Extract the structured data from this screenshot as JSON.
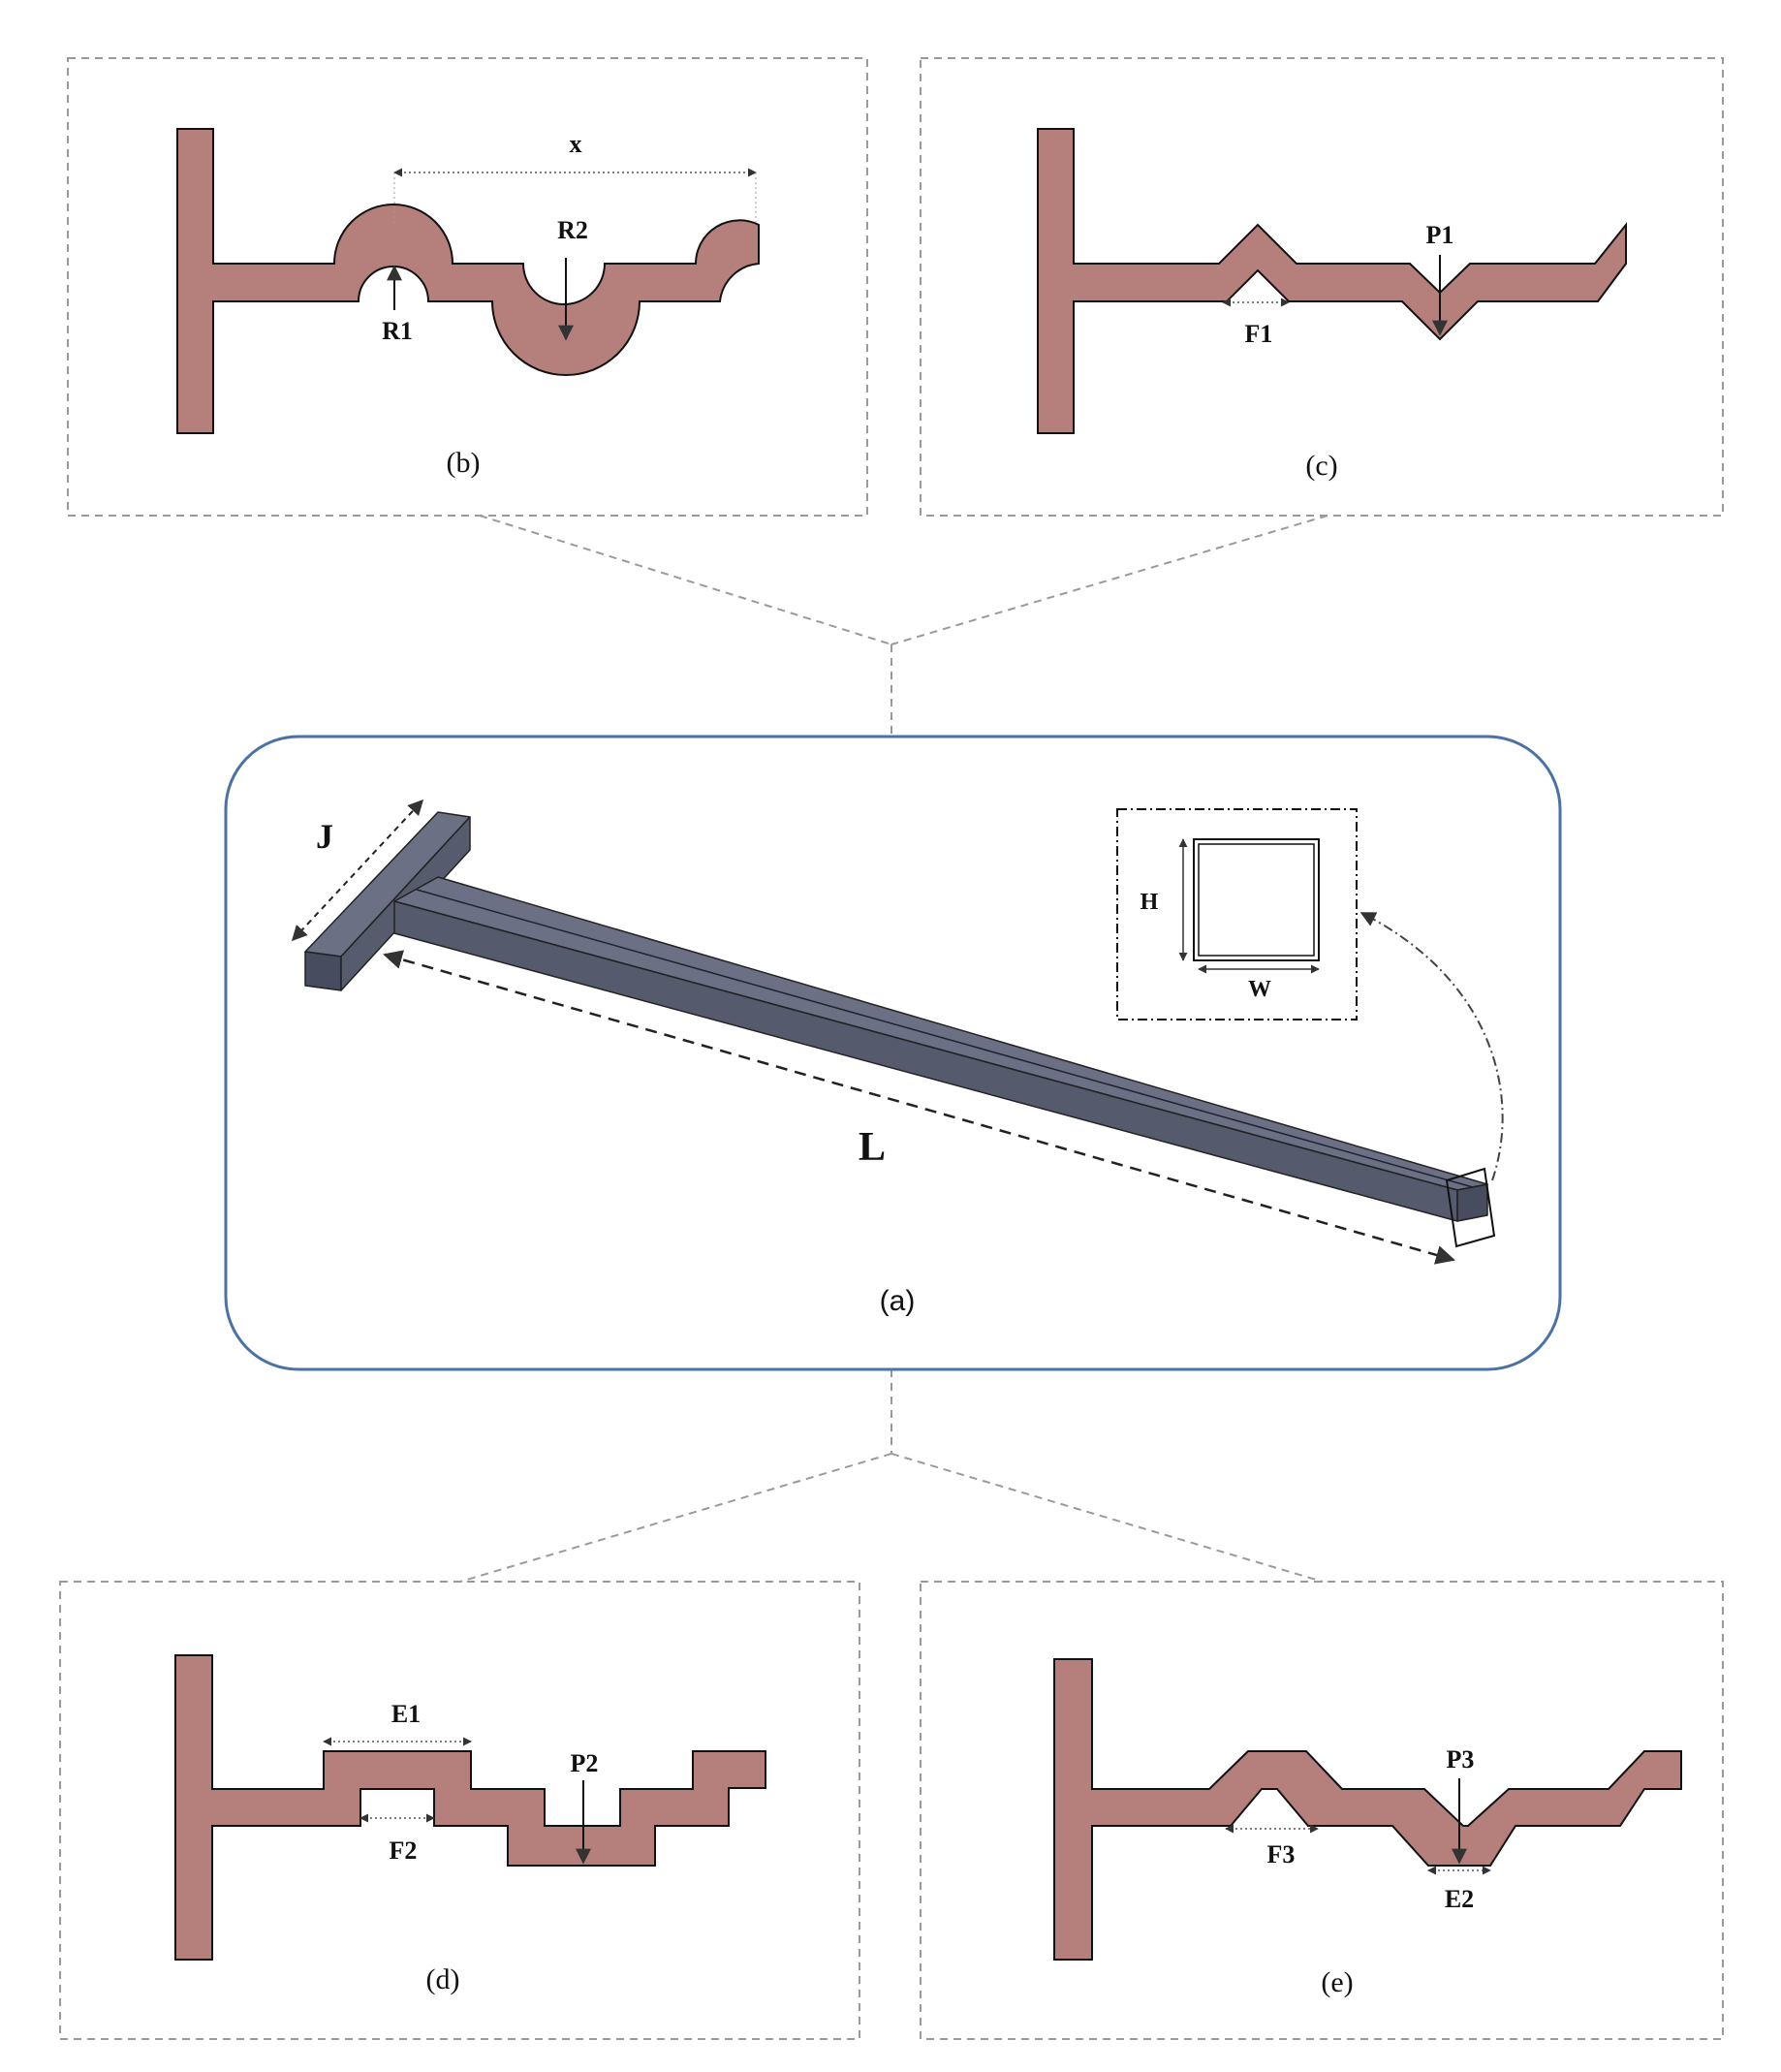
{
  "figure": {
    "colors": {
      "profile_fill": "#b5807c",
      "beam_fill": "#5c6175",
      "panel_border": "#4a72a6",
      "dashed_frame": "#9a9a9a",
      "arrow": "#333333"
    },
    "panels": {
      "a": {
        "caption": "(a)",
        "label_J": "J",
        "label_L": "L",
        "label_H": "H",
        "label_W": "W"
      },
      "b": {
        "caption": "(b)",
        "label_x": "x",
        "label_R1": "R1",
        "label_R2": "R2"
      },
      "c": {
        "caption": "(c)",
        "label_F1": "F1",
        "label_P1": "P1"
      },
      "d": {
        "caption": "(d)",
        "label_E1": "E1",
        "label_F2": "F2",
        "label_P2": "P2"
      },
      "e": {
        "caption": "(e)",
        "label_F3": "F3",
        "label_P3": "P3",
        "label_E2": "E2"
      }
    }
  }
}
